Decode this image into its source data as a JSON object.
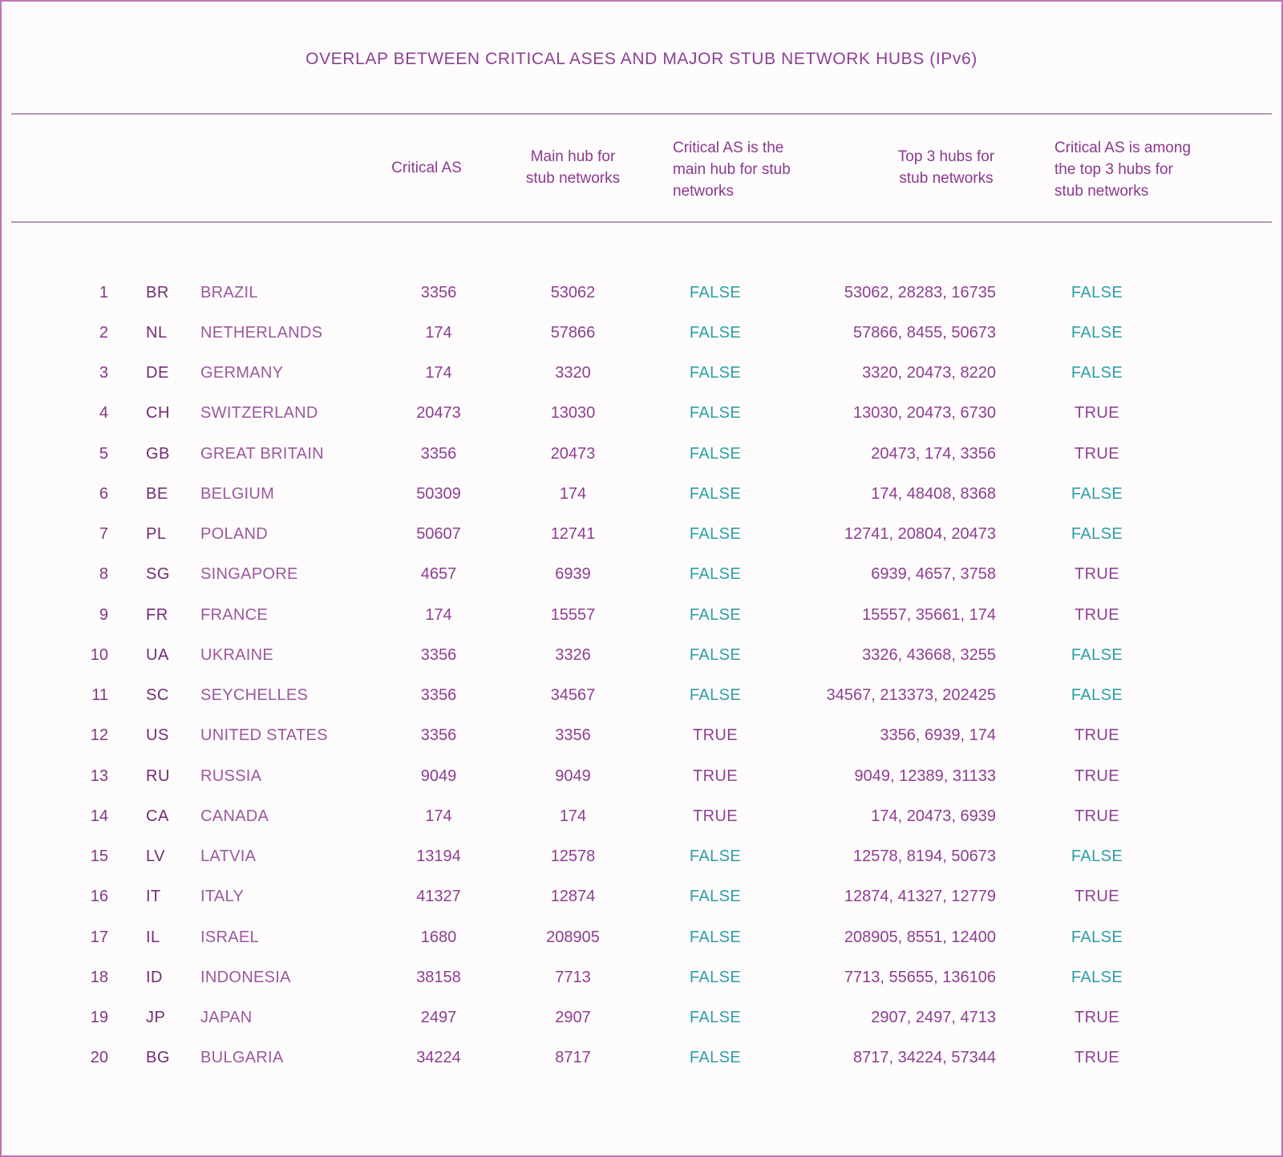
{
  "title": "OVERLAP BETWEEN CRITICAL ASES AND MAJOR STUB NETWORK HUBS (IPv6)",
  "colors": {
    "purple_text": "#8d3f8f",
    "dark_purple_code": "#722d74",
    "light_purple_country": "#9a599c",
    "teal_false": "#2d9fa4",
    "true_purple": "#8d4191",
    "border_pink": "#bd74b6",
    "rule_mauve": "#b29ab3",
    "background": "#fdfbfc"
  },
  "header_display": {
    "critical_as": [
      "Critical AS"
    ],
    "main_hub": [
      "Main hub for",
      "stub networks"
    ],
    "is_main_hub": [
      "Critical AS is the",
      "main hub for stub",
      "networks"
    ],
    "top3": [
      "Top 3 hubs for",
      "stub networks"
    ],
    "in_top3": [
      "Critical AS is among",
      "the top 3 hubs for",
      "stub networks"
    ]
  },
  "chart_data": {
    "type": "table",
    "title": "OVERLAP BETWEEN CRITICAL ASES AND MAJOR STUB NETWORK HUBS (IPv6)",
    "columns": [
      "",
      "",
      "",
      "Critical AS",
      "Main hub for stub networks",
      "Critical AS is the main hub for stub networks",
      "Top 3 hubs for stub networks",
      "Critical AS is among the top 3 hubs for stub networks"
    ],
    "rows": [
      [
        "1",
        "BR",
        "BRAZIL",
        "3356",
        "53062",
        "FALSE",
        "53062, 28283, 16735",
        "FALSE"
      ],
      [
        "2",
        "NL",
        "NETHERLANDS",
        "174",
        "57866",
        "FALSE",
        "57866, 8455, 50673",
        "FALSE"
      ],
      [
        "3",
        "DE",
        "GERMANY",
        "174",
        "3320",
        "FALSE",
        "3320, 20473, 8220",
        "FALSE"
      ],
      [
        "4",
        "CH",
        "SWITZERLAND",
        "20473",
        "13030",
        "FALSE",
        "13030, 20473, 6730",
        "TRUE"
      ],
      [
        "5",
        "GB",
        "GREAT BRITAIN",
        "3356",
        "20473",
        "FALSE",
        "20473, 174, 3356",
        "TRUE"
      ],
      [
        "6",
        "BE",
        "BELGIUM",
        "50309",
        "174",
        "FALSE",
        "174, 48408, 8368",
        "FALSE"
      ],
      [
        "7",
        "PL",
        "POLAND",
        "50607",
        "12741",
        "FALSE",
        "12741, 20804, 20473",
        "FALSE"
      ],
      [
        "8",
        "SG",
        "SINGAPORE",
        "4657",
        "6939",
        "FALSE",
        "6939, 4657, 3758",
        "TRUE"
      ],
      [
        "9",
        "FR",
        "FRANCE",
        "174",
        "15557",
        "FALSE",
        "15557, 35661, 174",
        "TRUE"
      ],
      [
        "10",
        "UA",
        "UKRAINE",
        "3356",
        "3326",
        "FALSE",
        "3326, 43668, 3255",
        "FALSE"
      ],
      [
        "11",
        "SC",
        "SEYCHELLES",
        "3356",
        "34567",
        "FALSE",
        "34567, 213373, 202425",
        "FALSE"
      ],
      [
        "12",
        "US",
        "UNITED STATES",
        "3356",
        "3356",
        "TRUE",
        "3356, 6939, 174",
        "TRUE"
      ],
      [
        "13",
        "RU",
        "RUSSIA",
        "9049",
        "9049",
        "TRUE",
        "9049, 12389, 31133",
        "TRUE"
      ],
      [
        "14",
        "CA",
        "CANADA",
        "174",
        "174",
        "TRUE",
        "174, 20473, 6939",
        "TRUE"
      ],
      [
        "15",
        "LV",
        "LATVIA",
        "13194",
        "12578",
        "FALSE",
        "12578, 8194, 50673",
        "FALSE"
      ],
      [
        "16",
        "IT",
        "ITALY",
        "41327",
        "12874",
        "FALSE",
        "12874, 41327, 12779",
        "TRUE"
      ],
      [
        "17",
        "IL",
        "ISRAEL",
        "1680",
        "208905",
        "FALSE",
        "208905, 8551, 12400",
        "FALSE"
      ],
      [
        "18",
        "ID",
        "INDONESIA",
        "38158",
        "7713",
        "FALSE",
        "7713, 55655, 136106",
        "FALSE"
      ],
      [
        "19",
        "JP",
        "JAPAN",
        "2497",
        "2907",
        "FALSE",
        "2907, 2497, 4713",
        "TRUE"
      ],
      [
        "20",
        "BG",
        "BULGARIA",
        "34224",
        "8717",
        "FALSE",
        "8717, 34224, 57344",
        "TRUE"
      ]
    ]
  }
}
